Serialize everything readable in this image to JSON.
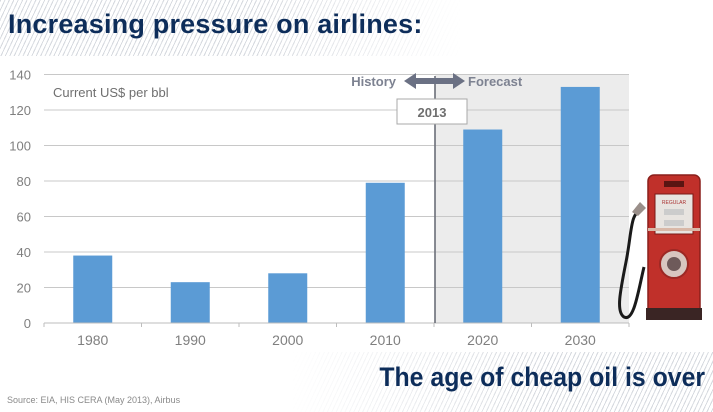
{
  "slide": {
    "title": "Increasing pressure on airlines:",
    "tagline": "The age of cheap oil is over",
    "source": "Source: EIA, HIS CERA (May 2013), Airbus"
  },
  "annotations": {
    "unit_label": "Current US$ per bbl",
    "history_label": "History",
    "forecast_label": "Forecast",
    "divider_year": "2013",
    "arrow_icon": "double-headed-arrow"
  },
  "illustration": {
    "name": "retro-gas-pump",
    "pump_label": "REGULAR",
    "color": "#c0302a"
  },
  "colors": {
    "bar": "#5b9bd5",
    "title": "#0d2d5a",
    "forecast_shade": "#ececec",
    "gridline": "#c8c8c8",
    "tick_text": "#7f7f7f",
    "annotation_text": "#7d8291"
  },
  "chart_data": {
    "type": "bar",
    "title": "",
    "xlabel": "",
    "ylabel": "Current US$ per bbl",
    "categories": [
      "1980",
      "1990",
      "2000",
      "2010",
      "2020",
      "2030"
    ],
    "values": [
      38,
      23,
      28,
      79,
      109,
      133
    ],
    "forecast_from_category": "2020",
    "ylim": [
      0,
      140
    ],
    "yticks": [
      0,
      20,
      40,
      60,
      80,
      100,
      120,
      140
    ],
    "ytick_labels": [
      "0",
      "20",
      "40",
      "60",
      "80",
      "100",
      "120",
      "140"
    ],
    "grid": true,
    "legend": "none"
  }
}
